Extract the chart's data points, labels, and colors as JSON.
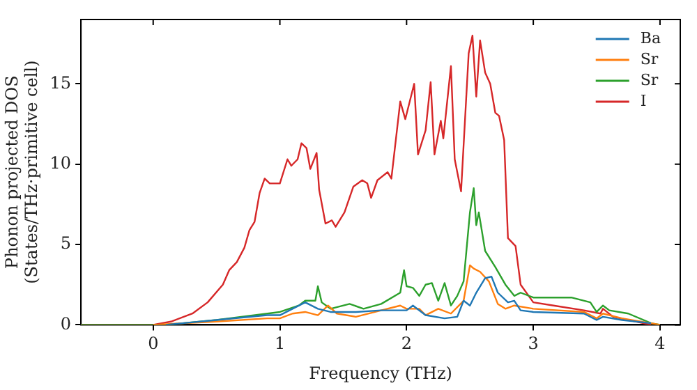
{
  "chart_data": {
    "type": "line",
    "xlabel": "Frequency (THz)",
    "ylabel": "Phonon projected DOS\n(States/THz·primitive cell)",
    "xlim": [
      -0.57,
      4.16
    ],
    "ylim": [
      0,
      19
    ],
    "xticks": [
      0,
      1,
      2,
      3,
      4
    ],
    "yticks": [
      0,
      5,
      10,
      15
    ],
    "grid": false,
    "legend": "top right",
    "marker": "none",
    "line_style": "solid",
    "series": [
      {
        "name": "Ba",
        "color": "#1f77b4",
        "x": [
          0.1,
          0.5,
          0.9,
          1.0,
          1.2,
          1.3,
          1.4,
          1.6,
          1.8,
          2.0,
          2.05,
          2.15,
          2.3,
          2.4,
          2.45,
          2.5,
          2.55,
          2.62,
          2.67,
          2.72,
          2.8,
          2.85,
          2.9,
          3.0,
          3.4,
          3.5,
          3.55,
          3.7,
          3.93
        ],
        "values": [
          0,
          0.3,
          0.6,
          0.6,
          1.4,
          1.0,
          0.8,
          0.8,
          0.9,
          0.9,
          1.2,
          0.6,
          0.4,
          0.5,
          1.5,
          1.2,
          2.0,
          2.9,
          3.0,
          2.0,
          1.4,
          1.5,
          0.9,
          0.8,
          0.7,
          0.3,
          0.5,
          0.3,
          0.1
        ]
      },
      {
        "name": "Sr",
        "color": "#ff7f0e",
        "x": [
          0,
          0.5,
          0.9,
          1.0,
          1.1,
          1.2,
          1.3,
          1.38,
          1.45,
          1.6,
          1.8,
          1.95,
          2.0,
          2.1,
          2.15,
          2.25,
          2.35,
          2.45,
          2.5,
          2.53,
          2.58,
          2.65,
          2.72,
          2.78,
          2.85,
          3.0,
          3.4,
          3.5,
          3.55,
          3.7,
          3.93,
          4.0
        ],
        "values": [
          0,
          0.2,
          0.4,
          0.4,
          0.7,
          0.8,
          0.6,
          1.2,
          0.7,
          0.5,
          0.9,
          1.2,
          1.0,
          1.0,
          0.6,
          1.0,
          0.7,
          1.5,
          3.7,
          3.5,
          3.3,
          2.7,
          1.3,
          1.0,
          1.2,
          1.0,
          0.8,
          0.4,
          0.7,
          0.4,
          0.1,
          0
        ]
      },
      {
        "name": "Sr",
        "color": "#2ca02c",
        "x": [
          -0.57,
          0.1,
          0.5,
          1.0,
          1.15,
          1.2,
          1.28,
          1.3,
          1.33,
          1.4,
          1.55,
          1.66,
          1.8,
          1.95,
          1.98,
          2.0,
          2.05,
          2.1,
          2.15,
          2.2,
          2.25,
          2.3,
          2.35,
          2.4,
          2.45,
          2.5,
          2.53,
          2.55,
          2.57,
          2.62,
          2.7,
          2.78,
          2.85,
          2.9,
          3.0,
          3.3,
          3.45,
          3.5,
          3.55,
          3.6,
          3.75,
          3.93,
          4.0
        ],
        "values": [
          0,
          0,
          0.3,
          0.8,
          1.2,
          1.5,
          1.5,
          2.4,
          1.4,
          1.0,
          1.3,
          1.0,
          1.3,
          2.0,
          3.4,
          2.4,
          2.3,
          1.8,
          2.5,
          2.6,
          1.5,
          2.6,
          1.2,
          1.8,
          2.7,
          7.0,
          8.5,
          6.2,
          7.0,
          4.6,
          3.6,
          2.5,
          1.8,
          2.0,
          1.7,
          1.7,
          1.4,
          0.8,
          1.2,
          0.9,
          0.7,
          0.1,
          0
        ]
      },
      {
        "name": "I",
        "color": "#d62728",
        "x": [
          -0.57,
          0,
          0.14,
          0.31,
          0.43,
          0.55,
          0.6,
          0.66,
          0.72,
          0.76,
          0.8,
          0.84,
          0.88,
          0.92,
          1.0,
          1.06,
          1.09,
          1.14,
          1.17,
          1.21,
          1.24,
          1.29,
          1.31,
          1.36,
          1.41,
          1.44,
          1.51,
          1.58,
          1.65,
          1.69,
          1.72,
          1.77,
          1.85,
          1.88,
          1.95,
          1.99,
          2.06,
          2.09,
          2.15,
          2.19,
          2.22,
          2.27,
          2.29,
          2.35,
          2.38,
          2.43,
          2.49,
          2.52,
          2.55,
          2.58,
          2.62,
          2.66,
          2.7,
          2.73,
          2.77,
          2.8,
          2.86,
          2.9,
          3.0,
          3.16,
          3.4,
          3.53,
          3.55,
          3.63,
          3.93
        ],
        "values": [
          0,
          0,
          0.2,
          0.7,
          1.4,
          2.5,
          3.4,
          3.9,
          4.8,
          5.9,
          6.4,
          8.2,
          9.1,
          8.8,
          8.8,
          10.3,
          9.9,
          10.3,
          11.3,
          11.0,
          9.7,
          10.7,
          8.4,
          6.3,
          6.5,
          6.1,
          7.0,
          8.6,
          9.0,
          8.8,
          7.9,
          9.0,
          9.5,
          9.1,
          13.9,
          12.8,
          15.0,
          10.6,
          12.1,
          15.1,
          10.6,
          12.7,
          11.6,
          16.1,
          10.3,
          8.3,
          16.9,
          18.0,
          14.2,
          17.7,
          15.7,
          15.0,
          13.2,
          13.0,
          11.5,
          5.4,
          4.9,
          2.5,
          1.4,
          1.2,
          0.9,
          0.7,
          1.0,
          0.5,
          0
        ]
      }
    ]
  }
}
